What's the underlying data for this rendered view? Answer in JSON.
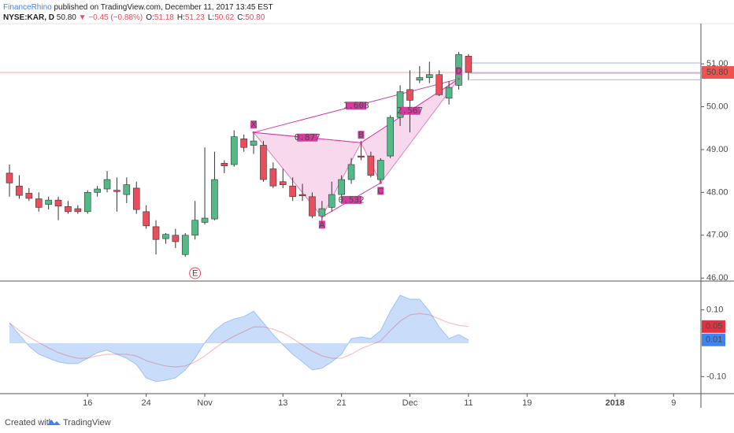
{
  "header": {
    "publisher": "FinanceRhino",
    "published": "published on TradingView.com, December 11, 2017 13:45 EST",
    "symbol": "NYSE:KAR, D",
    "last": "50.80",
    "change": "▼ −0.45 (−0.88%)",
    "ohlc": [
      [
        "O:",
        "51.18"
      ],
      [
        "H:",
        "51.23"
      ],
      [
        "L:",
        "50.62"
      ],
      [
        "C:",
        "50.80"
      ]
    ]
  },
  "footer": {
    "created": "Created with",
    "brand": "TradingView"
  },
  "chart_data": [
    {
      "type": "candlestick",
      "up_color": "#53b987",
      "down_color": "#eb4d5c",
      "open": [
        48.45,
        48.15,
        47.98,
        47.85,
        47.72,
        47.82,
        47.67,
        47.62,
        47.55,
        48.0,
        48.08,
        48.05,
        47.95,
        48.1,
        47.55,
        47.2,
        46.92,
        47.0,
        46.55,
        47.0,
        47.3,
        47.38,
        48.68,
        48.65,
        49.25,
        49.1,
        49.1,
        48.55,
        48.25,
        48.15,
        47.95,
        47.9,
        47.45,
        47.65,
        47.95,
        48.3,
        48.85,
        48.85,
        48.3,
        48.85,
        49.75,
        50.4,
        50.62,
        50.68,
        50.75,
        50.2,
        50.5,
        51.18
      ],
      "high": [
        48.65,
        48.4,
        48.1,
        48.0,
        47.9,
        47.9,
        47.8,
        47.7,
        48.05,
        48.15,
        48.5,
        48.35,
        48.35,
        48.25,
        47.7,
        47.35,
        47.05,
        47.15,
        47.05,
        47.8,
        49.05,
        48.95,
        48.75,
        49.45,
        49.35,
        49.4,
        49.2,
        48.7,
        48.55,
        48.35,
        48.2,
        48.0,
        47.8,
        48.25,
        48.4,
        48.8,
        49.2,
        48.95,
        48.8,
        49.8,
        50.5,
        50.85,
        50.95,
        51.05,
        50.85,
        50.6,
        51.28,
        51.23
      ],
      "low": [
        47.9,
        47.85,
        47.8,
        47.55,
        47.6,
        47.35,
        47.5,
        47.5,
        47.5,
        47.9,
        48.0,
        47.55,
        47.75,
        47.5,
        47.15,
        46.55,
        46.8,
        46.7,
        46.5,
        46.9,
        47.25,
        47.35,
        48.45,
        48.6,
        48.95,
        48.9,
        48.25,
        48.1,
        48.1,
        47.8,
        47.8,
        47.4,
        47.3,
        47.55,
        47.85,
        48.2,
        48.75,
        48.35,
        48.2,
        48.8,
        49.55,
        49.4,
        50.55,
        50.55,
        50.25,
        50.05,
        50.4,
        50.62
      ],
      "close": [
        48.22,
        47.93,
        47.86,
        47.65,
        47.82,
        47.68,
        47.55,
        47.55,
        48.0,
        48.08,
        48.3,
        48.02,
        48.18,
        47.6,
        47.22,
        46.9,
        47.02,
        46.85,
        47.0,
        47.35,
        47.4,
        48.3,
        48.62,
        49.3,
        49.05,
        49.2,
        48.3,
        48.15,
        48.18,
        47.9,
        47.92,
        47.45,
        47.62,
        47.95,
        48.3,
        48.65,
        48.82,
        48.4,
        48.75,
        49.75,
        50.35,
        50.15,
        50.68,
        50.75,
        50.28,
        50.45,
        51.22,
        50.8
      ],
      "ylim": [
        45.93,
        51.94
      ],
      "yticks": [
        {
          "value": 46,
          "label": "46.00"
        },
        {
          "value": 47,
          "label": "47.00"
        },
        {
          "value": 48,
          "label": "48.00"
        },
        {
          "value": 49,
          "label": "49.00"
        },
        {
          "value": 50,
          "label": "50.00"
        },
        {
          "value": 51,
          "label": "51.00"
        }
      ],
      "xlim": [
        -0.97,
        70.8
      ],
      "xticks": [
        {
          "value": 8,
          "label": "16"
        },
        {
          "value": 14,
          "label": "24"
        },
        {
          "value": 20,
          "label": "Nov"
        },
        {
          "value": 28,
          "label": "13"
        },
        {
          "value": 34,
          "label": "21"
        },
        {
          "value": 41,
          "label": "Dec"
        },
        {
          "value": 47,
          "label": "11"
        },
        {
          "value": 53,
          "label": "19"
        },
        {
          "value": 62,
          "label": "2018"
        },
        {
          "value": 68,
          "label": "9"
        }
      ],
      "price_line": {
        "value": 50.8,
        "label": "50.80",
        "color": "#ef5350"
      },
      "range_lines": [
        51.02,
        50.78,
        50.63
      ],
      "pattern": {
        "color": "#d63ba0",
        "points": [
          {
            "label": "X",
            "index": 25,
            "price": 49.4
          },
          {
            "label": "A",
            "index": 32,
            "price": 47.43
          },
          {
            "label": "B",
            "index": 36,
            "price": 49.16
          },
          {
            "label": "C",
            "index": 38,
            "price": 48.22
          },
          {
            "label": "D",
            "index": 46,
            "price": 50.65
          }
        ],
        "ratios": [
          {
            "text": "0.877",
            "from": "X",
            "to": "B"
          },
          {
            "text": "1.608",
            "from": "X",
            "to": "D"
          },
          {
            "text": "0.532",
            "from": "A",
            "to": "C"
          },
          {
            "text": "2.567",
            "from": "B",
            "to": "D"
          }
        ]
      },
      "events": [
        {
          "label": "E",
          "index": 19
        }
      ]
    },
    {
      "type": "area_line",
      "ylim": [
        -0.151,
        0.184
      ],
      "yticks": [
        {
          "value": -0.1,
          "label": "-0.10"
        },
        {
          "value": 0.1,
          "label": "0.10"
        }
      ],
      "series": [
        {
          "kind": "area",
          "color": "#3d85f0",
          "last_label": "0.01",
          "values": [
            0.061,
            0.026,
            -0.009,
            -0.033,
            -0.045,
            -0.056,
            -0.061,
            -0.061,
            -0.045,
            -0.028,
            -0.021,
            -0.033,
            -0.045,
            -0.064,
            -0.104,
            -0.115,
            -0.111,
            -0.104,
            -0.08,
            -0.045,
            0.002,
            0.038,
            0.061,
            0.073,
            0.08,
            0.096,
            0.061,
            0.026,
            -0.005,
            -0.033,
            -0.056,
            -0.08,
            -0.075,
            -0.056,
            -0.033,
            0.014,
            0.019,
            0.014,
            0.038,
            0.096,
            0.144,
            0.132,
            0.132,
            0.096,
            0.049,
            0.014,
            0.026,
            0.01
          ]
        },
        {
          "kind": "line",
          "color": "#e8303f",
          "last_label": "0.05",
          "values": [
            0.061,
            0.038,
            0.019,
            0.002,
            -0.014,
            -0.028,
            -0.038,
            -0.045,
            -0.045,
            -0.038,
            -0.033,
            -0.033,
            -0.033,
            -0.038,
            -0.052,
            -0.061,
            -0.068,
            -0.071,
            -0.068,
            -0.056,
            -0.038,
            -0.016,
            0.005,
            0.021,
            0.035,
            0.049,
            0.049,
            0.042,
            0.031,
            0.014,
            -0.005,
            -0.024,
            -0.038,
            -0.045,
            -0.045,
            -0.033,
            -0.016,
            -0.005,
            0.007,
            0.038,
            0.066,
            0.085,
            0.089,
            0.085,
            0.073,
            0.061,
            0.054,
            0.05
          ]
        }
      ]
    }
  ]
}
